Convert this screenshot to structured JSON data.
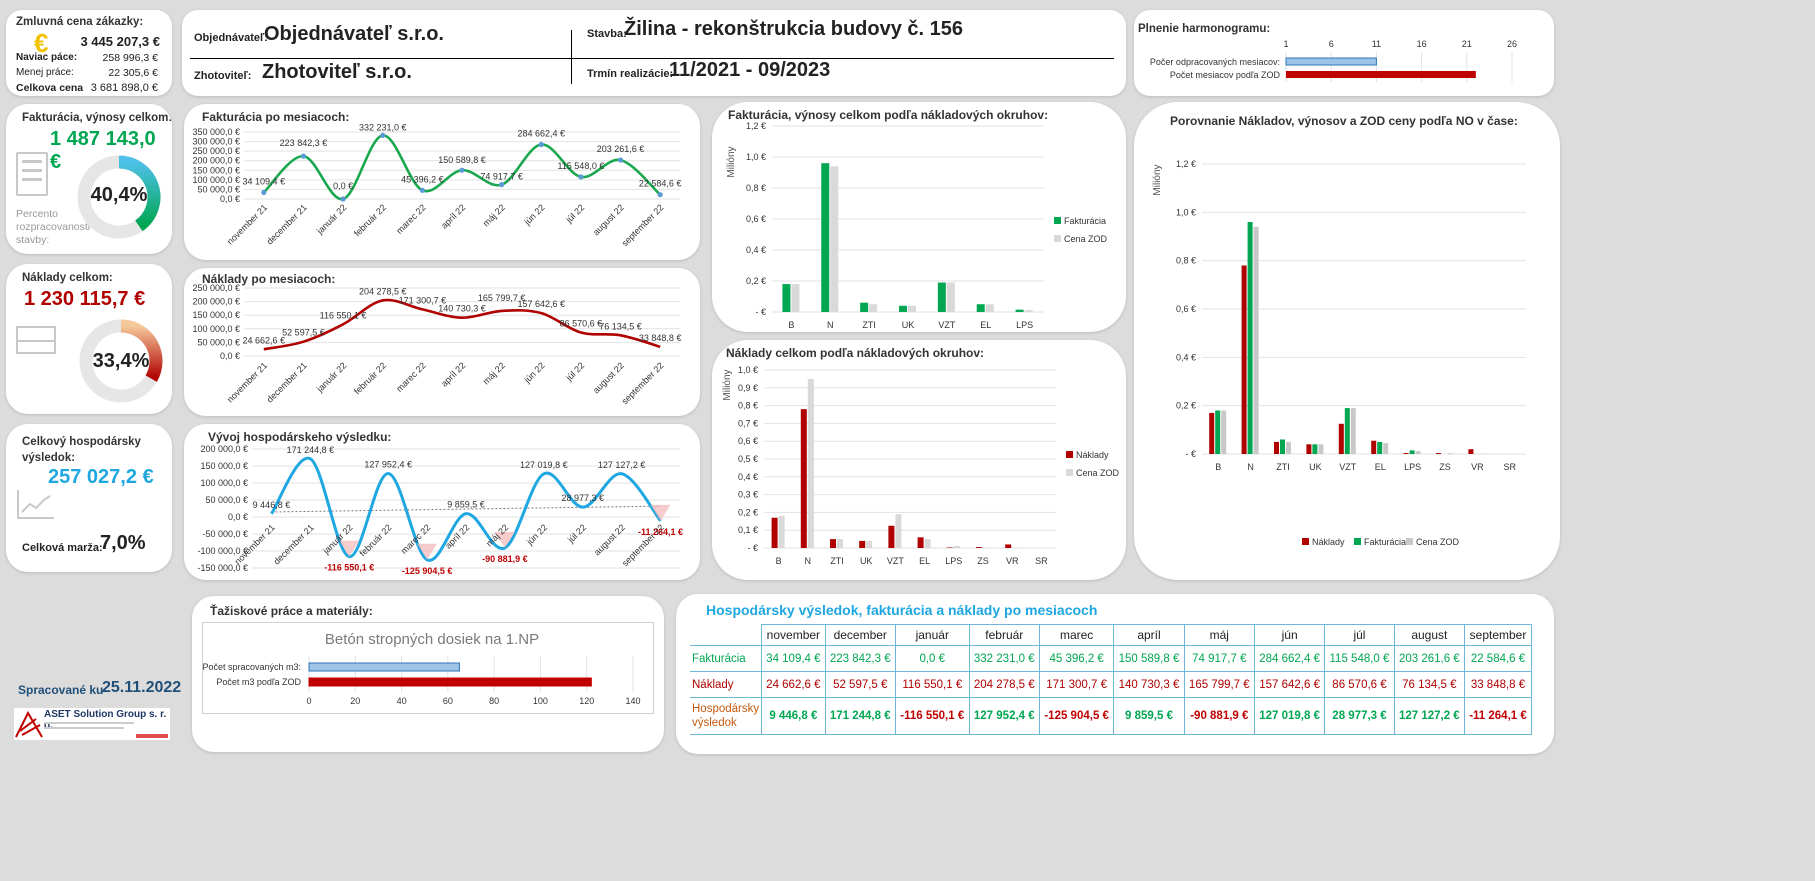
{
  "contract": {
    "title": "Zmluvná cena zákazky:",
    "value": "3 445 207,3 €",
    "extra_label": "Naviac páce:",
    "extra_value": "258 996,3 €",
    "less_label": "Menej práce:",
    "less_value": "22 305,6 €",
    "total_label": "Celkova cena",
    "total_value": "3 681 898,0 €"
  },
  "header": {
    "client_label": "Objednávateľ:",
    "client": "Objednávateľ s.r.o.",
    "contractor_label": "Zhotoviteľ:",
    "contractor": "Zhotoviteľ s.r.o.",
    "site_label": "Stavba:",
    "site": "Žilina - rekonštrukcia budovy č. 156",
    "term_label": "Trmín realizácie:",
    "term": "11/2021 - 09/2023"
  },
  "schedule": {
    "title": "Plnenie harmonogramu:",
    "ticks": [
      "1",
      "6",
      "11",
      "16",
      "21",
      "26"
    ],
    "row1_label": "Počer odpracovaných mesiacov:",
    "row1_value": 11,
    "row2_label": "Počet mesiacov  podľa ZOD",
    "row2_value": 22
  },
  "kpi_revenue": {
    "title": "Fakturácia, výnosy celkom:",
    "value": "1 487 143,0 €",
    "percent": "40,4%",
    "percent_value": 40.4,
    "caption": "Percento rozpracovanosti stavby:",
    "color": "#00a651"
  },
  "kpi_costs": {
    "title": "Náklady celkom:",
    "value": "1 230 115,7 €",
    "percent": "33,4%",
    "percent_value": 33.4,
    "color": "#b00000"
  },
  "kpi_result": {
    "title": "Celkový hospodársky výsledok:",
    "value": "257 027,2 €",
    "margin_label": "Celková marža:",
    "margin": "7,0%",
    "color": "#1ea7e1"
  },
  "footer": {
    "processed_label": "Spracované ku",
    "processed_date": "25.11.2022",
    "logo_text": "ASET Solution Group s. r. o."
  },
  "months": [
    "november 21",
    "december 21",
    "január 22",
    "február 22",
    "marec 22",
    "apríl 22",
    "máj 22",
    "jún 22",
    "júl 22",
    "august 22",
    "september 22"
  ],
  "chart_data": [
    {
      "id": "invoicing",
      "type": "line",
      "title": "Fakturácia po mesiacoch:",
      "yticks": [
        "350 000,0 €",
        "300 000,0 €",
        "250 000,0 €",
        "200 000,0 €",
        "150 000,0 €",
        "100 000,0 €",
        "50 000,0 €",
        "0,0 €"
      ],
      "ylim": [
        0,
        350000
      ],
      "values": [
        34109.4,
        223842.3,
        0,
        332231.0,
        45396.2,
        150589.8,
        74917.7,
        284662.4,
        115548.0,
        203261.6,
        22584.6
      ],
      "labels": [
        "34 109,4 €",
        "223 842,3 €",
        "0,0 €",
        "332 231,0 €",
        "45 396,2 €",
        "150 589,8 €",
        "74 917,7 €",
        "284 662,4 €",
        "115 548,0 €",
        "203 261,6 €",
        "22 584,6 €"
      ],
      "color": "#1aa84e"
    },
    {
      "id": "costs",
      "type": "line",
      "title": "Náklady po mesiacoch:",
      "yticks": [
        "250 000,0 €",
        "200 000,0 €",
        "150 000,0 €",
        "100 000,0 €",
        "50 000,0 €",
        "0,0 €"
      ],
      "ylim": [
        0,
        250000
      ],
      "values": [
        24662.6,
        52597.5,
        116550.1,
        204278.5,
        171300.7,
        140730.3,
        165799.7,
        157642.6,
        86570.6,
        76134.5,
        33848.8
      ],
      "labels": [
        "24 662,6 €",
        "52 597,5 €",
        "116 550,1 €",
        "204 278,5 €",
        "171 300,7 €",
        "140 730,3 €",
        "165 799,7 €",
        "157 642,6 €",
        "86 570,6 €",
        "76 134,5 €",
        "33 848,8 €"
      ],
      "color": "#b00000"
    },
    {
      "id": "result",
      "type": "line",
      "title": "Vývoj hospodárskeho výsledku:",
      "yticks": [
        "200 000,0 €",
        "150 000,0 €",
        "100 000,0 €",
        "50 000,0 €",
        "0,0 €",
        "-50 000,0 €",
        "-100 000,0 €",
        "-150 000,0 €"
      ],
      "ylim": [
        -150000,
        200000
      ],
      "values": [
        9446.8,
        171244.8,
        -116550.1,
        127952.4,
        -125904.5,
        9859.5,
        -90881.9,
        127019.8,
        28977.3,
        127127.2,
        -11264.1
      ],
      "labels": [
        "9 446,8 €",
        "171 244,8 €",
        "-116 550,1 €",
        "127 952,4 €",
        "-125 904,5 €",
        "9 859,5 €",
        "-90 881,9 €",
        "127 019,8 €",
        "28 977,3 €",
        "127 127,2 €",
        "-11 264,1 €"
      ],
      "color": "#1ea7e1"
    },
    {
      "id": "rev_by_area",
      "type": "bar",
      "title": "Fakturácia, výnosy celkom podľa nákladových okruhov:",
      "ylabel": "Milióny",
      "yticks": [
        "1,2 €",
        "1,0 €",
        "0,8 €",
        "0,6 €",
        "0,4 €",
        "0,2 €",
        "-  €"
      ],
      "ylim": [
        0,
        1.2
      ],
      "categories": [
        "B",
        "N",
        "ZTI",
        "UK",
        "VZT",
        "EL",
        "LPS"
      ],
      "series": [
        {
          "name": "Fakturácia",
          "color": "#00a651",
          "values": [
            0.18,
            0.96,
            0.06,
            0.04,
            0.19,
            0.05,
            0.015
          ]
        },
        {
          "name": "Cena ZOD",
          "color": "#d9d9d9",
          "values": [
            0.18,
            0.94,
            0.05,
            0.04,
            0.19,
            0.05,
            0.012
          ]
        }
      ]
    },
    {
      "id": "costs_by_area",
      "type": "bar",
      "title": "Náklady celkom podľa nákladových okruhov:",
      "ylabel": "Milióny",
      "yticks": [
        "1,0 €",
        "0,9 €",
        "0,8 €",
        "0,7 €",
        "0,6 €",
        "0,5 €",
        "0,4 €",
        "0,3 €",
        "0,2 €",
        "0,1 €",
        "-  €"
      ],
      "ylim": [
        0,
        1.0
      ],
      "categories": [
        "B",
        "N",
        "ZTI",
        "UK",
        "VZT",
        "EL",
        "LPS",
        "ZS",
        "VR",
        "SR"
      ],
      "series": [
        {
          "name": "Náklady",
          "color": "#b00000",
          "values": [
            0.17,
            0.78,
            0.05,
            0.04,
            0.125,
            0.06,
            0.003,
            0.005,
            0.02,
            0
          ]
        },
        {
          "name": "Cena ZOD",
          "color": "#d9d9d9",
          "values": [
            0.18,
            0.95,
            0.05,
            0.04,
            0.19,
            0.05,
            0.012,
            0.003,
            0.002,
            0
          ]
        }
      ]
    },
    {
      "id": "comparison",
      "type": "bar",
      "title": "Porovnanie Nákladov, výnosov a ZOD ceny  podľa NO v čase:",
      "ylabel": "Milióny",
      "yticks": [
        "1,2 €",
        "1,0 €",
        "0,8 €",
        "0,6 €",
        "0,4 €",
        "0,2 €",
        "-  €"
      ],
      "ylim": [
        0,
        1.2
      ],
      "categories": [
        "B",
        "N",
        "ZTI",
        "UK",
        "VZT",
        "EL",
        "LPS",
        "ZS",
        "VR",
        "SR"
      ],
      "series": [
        {
          "name": "Náklady",
          "color": "#b00000",
          "values": [
            0.17,
            0.78,
            0.05,
            0.04,
            0.125,
            0.055,
            0.004,
            0.004,
            0.02,
            0
          ]
        },
        {
          "name": "Fakturácia",
          "color": "#00a651",
          "values": [
            0.18,
            0.96,
            0.06,
            0.04,
            0.19,
            0.05,
            0.015,
            0,
            0,
            0
          ]
        },
        {
          "name": "Cena ZOD",
          "color": "#c8c8c8",
          "values": [
            0.18,
            0.94,
            0.05,
            0.04,
            0.19,
            0.045,
            0.012,
            0.003,
            0.002,
            0
          ]
        }
      ]
    },
    {
      "id": "materials",
      "type": "bar",
      "title": "Betón stropných dosiek na 1.NP",
      "categories": [
        "Počet spracovaných m3:",
        "Počet m3  podľa ZOD"
      ],
      "values": [
        65,
        122
      ],
      "xticks": [
        "0",
        "20",
        "40",
        "60",
        "80",
        "100",
        "120",
        "140"
      ],
      "xlim": [
        0,
        140
      ]
    }
  ],
  "materials_title": "Ťažiskové práce a materiály:",
  "table": {
    "title": "Hospodársky výsledok, fakturácia a náklady po mesiacoch",
    "headers": [
      "november",
      "december",
      "január",
      "február",
      "marec",
      "apríl",
      "máj",
      "jún",
      "júl",
      "august",
      "september"
    ],
    "rows": [
      {
        "label": "Fakturácia",
        "cells": [
          "34 109,4 €",
          "223 842,3 €",
          "0,0 €",
          "332 231,0 €",
          "45 396,2 €",
          "150 589,8 €",
          "74 917,7 €",
          "284 662,4 €",
          "115 548,0 €",
          "203 261,6 €",
          "22 584,6 €"
        ]
      },
      {
        "label": "Náklady",
        "cells": [
          "24 662,6 €",
          "52 597,5 €",
          "116 550,1 €",
          "204 278,5 €",
          "171 300,7 €",
          "140 730,3 €",
          "165 799,7 €",
          "157 642,6 €",
          "86 570,6 €",
          "76 134,5 €",
          "33 848,8 €"
        ]
      },
      {
        "label": "Hospodársky výsledok",
        "cells": [
          "9 446,8 €",
          "171 244,8 €",
          "-116 550,1 €",
          "127 952,4 €",
          "-125 904,5 €",
          "9 859,5 €",
          "-90 881,9 €",
          "127 019,8 €",
          "28 977,3 €",
          "127 127,2 €",
          "-11 264,1 €"
        ]
      }
    ]
  }
}
